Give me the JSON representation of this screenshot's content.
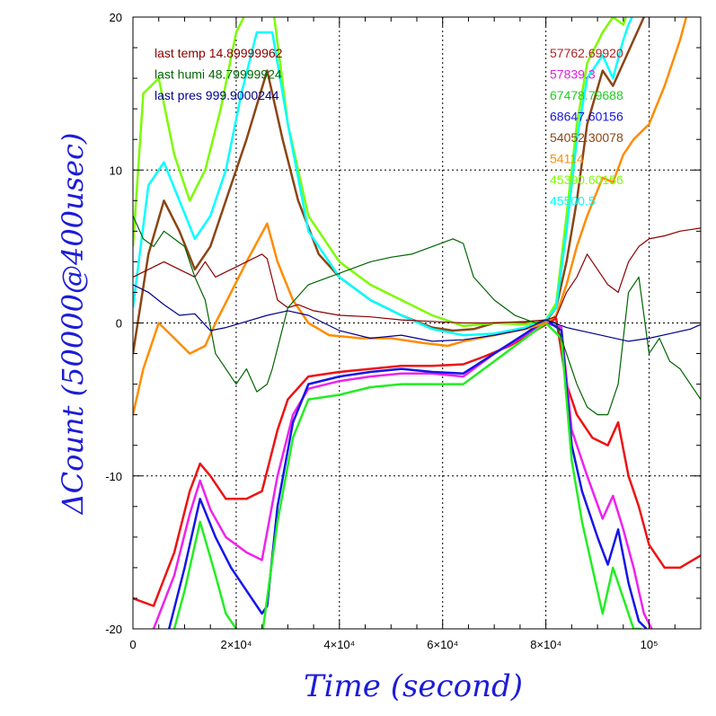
{
  "chart_data": {
    "type": "line",
    "title": "",
    "xlabel": "Time (second)",
    "ylabel": "ΔCount (50000@400usec)",
    "xlim": [
      0,
      110000
    ],
    "ylim": [
      -20,
      20
    ],
    "x_ticks": [
      {
        "value": 0,
        "label": "0"
      },
      {
        "value": 20000,
        "label": "2×10⁴"
      },
      {
        "value": 40000,
        "label": "4×10⁴"
      },
      {
        "value": 60000,
        "label": "6×10⁴"
      },
      {
        "value": 80000,
        "label": "8×10⁴"
      },
      {
        "value": 100000,
        "label": "10⁵"
      }
    ],
    "y_ticks": [
      {
        "value": -20,
        "label": "-20"
      },
      {
        "value": -10,
        "label": "-10"
      },
      {
        "value": 0,
        "label": "0"
      },
      {
        "value": 10,
        "label": "10"
      },
      {
        "value": 20,
        "label": "20"
      }
    ],
    "grid": true,
    "legend_left": [
      {
        "text": "last temp 14.89999962",
        "color": "#8b0000"
      },
      {
        "text": "last humi 48.79999924",
        "color": "#006400"
      },
      {
        "text": "last pres 999.9000244",
        "color": "#00008b"
      }
    ],
    "legend_right": [
      {
        "text": "57762.69920",
        "color": "#b22222"
      },
      {
        "text": "57839.3",
        "color": "#e020e0"
      },
      {
        "text": "67478.79688",
        "color": "#22cc22"
      },
      {
        "text": "68647.60156",
        "color": "#1515e0"
      },
      {
        "text": "54052.30078",
        "color": "#8b4513"
      },
      {
        "text": "54114",
        "color": "#ff8c00"
      },
      {
        "text": "45390.60156",
        "color": "#7fff00"
      },
      {
        "text": "45500.5",
        "color": "#00ffff"
      }
    ],
    "series": [
      {
        "color": "#ee1111",
        "width": 2.5,
        "x": [
          0,
          4000,
          8000,
          11000,
          13000,
          15000,
          18000,
          22000,
          25000,
          28000,
          30000,
          34000,
          40000,
          46000,
          52000,
          58000,
          64000,
          68000,
          73000,
          78000,
          82000,
          84000,
          86000,
          89000,
          92000,
          94000,
          96000,
          98000,
          100000,
          103000,
          106000,
          110000
        ],
        "y": [
          -18,
          -18.5,
          -15,
          -11,
          -9.2,
          -10,
          -11.5,
          -11.5,
          -11,
          -7,
          -5,
          -3.5,
          -3.2,
          -3,
          -2.8,
          -2.8,
          -2.7,
          -2.2,
          -1.5,
          -0.5,
          0.3,
          -4,
          -6,
          -7.5,
          -8,
          -6.5,
          -10,
          -12,
          -14.5,
          -16,
          -16,
          -15.2
        ]
      },
      {
        "color": "#ee22ee",
        "width": 2.5,
        "x": [
          4000,
          8000,
          11000,
          13000,
          15000,
          18000,
          22000,
          25000,
          28000,
          31000,
          34000,
          40000,
          46000,
          52000,
          58000,
          64000,
          70000,
          76000,
          80000,
          83000,
          85000,
          88000,
          91000,
          93000,
          95000,
          97000,
          99000,
          100500
        ],
        "y": [
          -20,
          -16.5,
          -12.5,
          -10.3,
          -12.2,
          -14,
          -15,
          -15.5,
          -10,
          -6,
          -4.3,
          -3.8,
          -3.5,
          -3.3,
          -3.3,
          -3.5,
          -2,
          -0.8,
          0,
          -0.3,
          -7,
          -10,
          -12.8,
          -11.3,
          -13.5,
          -16,
          -19,
          -20
        ]
      },
      {
        "color": "#1515e8",
        "width": 2.5,
        "x": [
          7000,
          10000,
          13000,
          16000,
          19000,
          22000,
          25000,
          26000,
          28000,
          31000,
          34000,
          40000,
          46000,
          52000,
          58000,
          64000,
          70000,
          76000,
          80000,
          83000,
          85000,
          87000,
          90000,
          92000,
          94000,
          96000,
          98000,
          99500
        ],
        "y": [
          -20,
          -16,
          -11.5,
          -14,
          -16,
          -17.5,
          -19,
          -18.5,
          -12,
          -6.5,
          -4,
          -3.5,
          -3.2,
          -3,
          -3.2,
          -3.3,
          -2,
          -0.7,
          0.2,
          -0.5,
          -8,
          -11,
          -14,
          -15.8,
          -13.5,
          -17,
          -19.5,
          -20
        ]
      },
      {
        "color": "#22ee22",
        "width": 2.5,
        "x": [
          8000,
          10000,
          13000,
          16000,
          18000,
          20000,
          22000,
          25000,
          28000,
          31000,
          34000,
          40000,
          46000,
          52000,
          58000,
          64000,
          70000,
          76000,
          80000,
          83000,
          85000,
          87000,
          89000,
          91000,
          93000,
          95000,
          97000,
          98500
        ],
        "y": [
          -20,
          -17.5,
          -13,
          -16.5,
          -19,
          -20,
          -21,
          -20.5,
          -13,
          -7.5,
          -5,
          -4.7,
          -4.2,
          -4,
          -4,
          -4,
          -2.5,
          -1,
          0,
          -1,
          -9,
          -13,
          -16,
          -19,
          -16,
          -18,
          -20,
          -20
        ]
      },
      {
        "color": "#8b4513",
        "width": 2.5,
        "x": [
          0,
          3000,
          6000,
          9000,
          12000,
          15000,
          18000,
          22000,
          26000,
          29000,
          32000,
          36000,
          40000,
          46000,
          52000,
          58000,
          62000,
          66000,
          70000,
          76000,
          80000,
          82000,
          84000,
          86000,
          88000,
          91000,
          93000,
          95000,
          97000,
          99000,
          101000,
          103000
        ],
        "y": [
          -2,
          4.5,
          8,
          6,
          3.5,
          5,
          8,
          12,
          16.5,
          12,
          8,
          4.5,
          3,
          1.5,
          0.5,
          -0.3,
          -0.5,
          -0.4,
          0,
          0,
          0.1,
          1,
          4,
          8,
          13,
          16.5,
          15.5,
          17,
          18.5,
          20,
          21,
          22
        ]
      },
      {
        "color": "#ff8c00",
        "width": 2.5,
        "x": [
          0,
          2000,
          5000,
          8000,
          11000,
          14000,
          16000,
          19000,
          22000,
          26000,
          28000,
          31000,
          34000,
          38000,
          44000,
          50000,
          56000,
          61000,
          64000,
          70000,
          76000,
          80000,
          82000,
          84000,
          86000,
          88000,
          91000,
          93000,
          95000,
          97000,
          100000,
          103000,
          106000,
          108000
        ],
        "y": [
          -6,
          -3,
          0,
          -1,
          -2,
          -1.5,
          0,
          2,
          4,
          6.5,
          4,
          1.5,
          0,
          -0.8,
          -1,
          -1,
          -1.3,
          -1.5,
          -1.2,
          -0.8,
          -0.4,
          0,
          0.5,
          2.5,
          5,
          7,
          9.5,
          9.2,
          11,
          12,
          13,
          15.5,
          18.5,
          21
        ]
      },
      {
        "color": "#7cfc00",
        "width": 2.5,
        "x": [
          0,
          2000,
          5000,
          8000,
          11000,
          14000,
          17000,
          20000,
          23000,
          27000,
          30000,
          34000,
          40000,
          46000,
          52000,
          58000,
          64000,
          70000,
          76000,
          80000,
          82000,
          84000,
          86000,
          88000,
          91000,
          93000,
          95000,
          96000,
          98000
        ],
        "y": [
          5,
          15,
          16,
          11,
          8,
          10,
          14,
          19,
          21,
          21,
          13,
          7,
          4,
          2.5,
          1.5,
          0.5,
          -0.2,
          0,
          -0.1,
          0.2,
          1.3,
          7,
          13,
          17,
          19,
          20,
          19.5,
          20.5,
          21
        ]
      },
      {
        "color": "#00ffff",
        "width": 2.5,
        "x": [
          0,
          3000,
          6000,
          9000,
          12000,
          15000,
          18000,
          21000,
          24000,
          27000,
          30000,
          34000,
          40000,
          46000,
          52000,
          58000,
          64000,
          70000,
          76000,
          80000,
          82000,
          84000,
          86000,
          88000,
          91000,
          93000,
          95000,
          96000,
          98000
        ],
        "y": [
          1,
          9,
          10.5,
          8,
          5.5,
          7,
          10,
          15,
          19,
          19,
          13,
          6,
          3,
          1.5,
          0.5,
          -0.4,
          -0.8,
          -0.7,
          -0.3,
          0.2,
          1,
          6,
          12,
          16,
          17.5,
          16,
          18.5,
          19.5,
          21
        ]
      },
      {
        "color": "#8b0000",
        "width": 1.2,
        "x": [
          0,
          3000,
          6000,
          9000,
          12000,
          14000,
          16000,
          19000,
          22000,
          25000,
          26000,
          28000,
          30000,
          32000,
          35000,
          40000,
          46000,
          52000,
          58000,
          64000,
          70000,
          76000,
          80000,
          82000,
          84000,
          86000,
          88000,
          90000,
          92000,
          94000,
          96000,
          98000,
          100000,
          103000,
          106000,
          110000
        ],
        "y": [
          3,
          3.5,
          4,
          3.5,
          3,
          4,
          3,
          3.5,
          4,
          4.5,
          4.2,
          1.5,
          1,
          1.2,
          0.8,
          0.5,
          0.4,
          0.2,
          0.1,
          0,
          0,
          0.1,
          0.2,
          0.4,
          2,
          3,
          4.5,
          3.5,
          2.5,
          2,
          4,
          5,
          5.5,
          5.7,
          6,
          6.2
        ]
      },
      {
        "color": "#006400",
        "width": 1.2,
        "x": [
          0,
          2000,
          4000,
          6000,
          8000,
          10000,
          12000,
          14000,
          16000,
          18000,
          20000,
          22000,
          24000,
          26000,
          27000,
          30000,
          34000,
          38000,
          42000,
          46000,
          50000,
          54000,
          58000,
          62000,
          64000,
          66000,
          70000,
          74000,
          78000,
          80000,
          82000,
          84000,
          86000,
          88000,
          90000,
          92000,
          94000,
          96000,
          98000,
          100000,
          102000,
          104000,
          106000,
          108000,
          110000
        ],
        "y": [
          7,
          5.5,
          5,
          6,
          5.5,
          5,
          3,
          1.5,
          -2,
          -3,
          -4,
          -3,
          -4.5,
          -4,
          -3,
          1,
          2.5,
          3,
          3.5,
          4,
          4.3,
          4.5,
          5,
          5.5,
          5.2,
          3,
          1.5,
          0.5,
          0,
          0.2,
          0,
          -2,
          -4,
          -5.5,
          -6,
          -6,
          -4,
          2,
          3,
          -2,
          -1,
          -2.5,
          -3,
          -4,
          -5
        ]
      },
      {
        "color": "#00008b",
        "width": 1.2,
        "x": [
          0,
          3000,
          6000,
          9000,
          12000,
          15000,
          18000,
          22000,
          26000,
          30000,
          34000,
          40000,
          46000,
          52000,
          58000,
          64000,
          70000,
          76000,
          80000,
          84000,
          88000,
          92000,
          96000,
          100000,
          104000,
          108000,
          110000
        ],
        "y": [
          2.5,
          2,
          1.2,
          0.5,
          0.6,
          -0.5,
          -0.3,
          0.1,
          0.5,
          0.8,
          0.5,
          -0.5,
          -1,
          -0.8,
          -1.2,
          -1.1,
          -0.8,
          -0.4,
          0.2,
          -0.3,
          -0.6,
          -0.9,
          -1.2,
          -1,
          -0.7,
          -0.4,
          -0.1
        ]
      }
    ]
  }
}
